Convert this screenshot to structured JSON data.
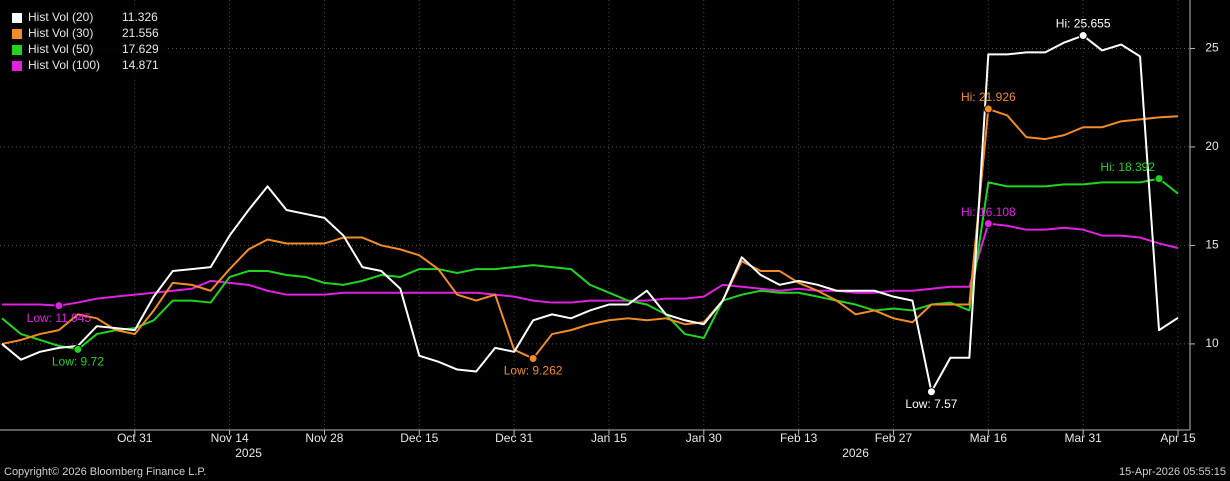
{
  "chart_data": {
    "type": "line",
    "categories": [
      null,
      null,
      null,
      null,
      null,
      null,
      null,
      "Oct 31",
      null,
      null,
      null,
      null,
      "Nov 14",
      null,
      null,
      null,
      null,
      "Nov 28",
      null,
      null,
      null,
      null,
      "Dec 15",
      null,
      null,
      null,
      null,
      "Dec 31",
      null,
      null,
      null,
      null,
      "Jan 15",
      null,
      null,
      null,
      null,
      "Jan 30",
      null,
      null,
      null,
      null,
      "Feb 13",
      null,
      null,
      null,
      null,
      "Feb 27",
      null,
      null,
      null,
      null,
      "Mar 16",
      null,
      null,
      null,
      null,
      "Mar 31",
      null,
      null,
      null,
      null,
      "Apr 15"
    ],
    "years": [
      null,
      null,
      null,
      null,
      null,
      null,
      null,
      null,
      null,
      null,
      null,
      null,
      null,
      "2025",
      null,
      null,
      null,
      null,
      null,
      null,
      null,
      null,
      null,
      null,
      null,
      null,
      null,
      null,
      null,
      null,
      null,
      null,
      null,
      null,
      null,
      null,
      null,
      null,
      null,
      null,
      null,
      null,
      null,
      null,
      null,
      "2026",
      null,
      null,
      null,
      null,
      null,
      null,
      null,
      null,
      null,
      null,
      null,
      null,
      null,
      null,
      null,
      null,
      null
    ],
    "series": [
      {
        "name": "Hist Vol (20)",
        "color": "#ffffff",
        "values": [
          10.0,
          9.2,
          9.6,
          9.8,
          9.9,
          10.9,
          10.8,
          10.7,
          12.4,
          13.7,
          13.8,
          13.9,
          15.5,
          16.8,
          18.0,
          16.8,
          16.6,
          16.4,
          15.5,
          13.9,
          13.7,
          12.8,
          9.4,
          9.1,
          8.7,
          8.6,
          9.8,
          9.6,
          11.2,
          11.5,
          11.3,
          11.7,
          12.0,
          12.0,
          12.7,
          11.5,
          11.2,
          11.0,
          12.2,
          14.4,
          13.5,
          13.0,
          13.2,
          13.0,
          12.7,
          12.7,
          12.7,
          12.4,
          12.2,
          7.57,
          9.3,
          9.3,
          24.7,
          24.7,
          24.8,
          24.8,
          25.3,
          25.655,
          24.9,
          25.2,
          24.6,
          10.7,
          11.326
        ],
        "value_labels": [
          null,
          null,
          null,
          null,
          null,
          null,
          null,
          null,
          null,
          null,
          null,
          null,
          null,
          null,
          null,
          null,
          null,
          null,
          null,
          null,
          null,
          null,
          null,
          null,
          null,
          null,
          null,
          null,
          null,
          null,
          null,
          null,
          null,
          null,
          null,
          null,
          null,
          null,
          null,
          null,
          null,
          null,
          null,
          null,
          null,
          null,
          null,
          null,
          null,
          "Low: 7.57",
          null,
          null,
          null,
          null,
          null,
          null,
          null,
          "Hi: 25.655",
          null,
          null,
          null,
          null,
          null
        ]
      },
      {
        "name": "Hist Vol (30)",
        "color": "#f28c28",
        "values": [
          10.0,
          10.2,
          10.5,
          10.7,
          11.5,
          11.3,
          10.7,
          10.5,
          11.7,
          13.1,
          13.0,
          12.7,
          13.8,
          14.8,
          15.3,
          15.1,
          15.1,
          15.1,
          15.4,
          15.4,
          15.0,
          14.8,
          14.5,
          13.8,
          12.5,
          12.2,
          12.5,
          9.7,
          9.262,
          10.5,
          10.7,
          11.0,
          11.2,
          11.3,
          11.2,
          11.3,
          11.0,
          11.1,
          12.2,
          14.2,
          13.7,
          13.7,
          13.1,
          12.7,
          12.2,
          11.5,
          11.7,
          11.3,
          11.1,
          12.0,
          12.0,
          12.0,
          21.926,
          21.6,
          20.5,
          20.4,
          20.6,
          21.0,
          21.0,
          21.3,
          21.4,
          21.5,
          21.556
        ],
        "value_labels": [
          null,
          null,
          null,
          null,
          null,
          null,
          null,
          null,
          null,
          null,
          null,
          null,
          null,
          null,
          null,
          null,
          null,
          null,
          null,
          null,
          null,
          null,
          null,
          null,
          null,
          null,
          null,
          null,
          "Low: 9.262",
          null,
          null,
          null,
          null,
          null,
          null,
          null,
          null,
          null,
          null,
          null,
          null,
          null,
          null,
          null,
          null,
          null,
          null,
          null,
          null,
          null,
          null,
          null,
          "Hi: 21.926",
          null,
          null,
          null,
          null,
          null,
          null,
          null,
          null,
          null,
          null
        ]
      },
      {
        "name": "Hist Vol (50)",
        "color": "#22d322",
        "values": [
          11.3,
          10.5,
          10.2,
          9.9,
          9.72,
          10.5,
          10.7,
          10.8,
          11.2,
          12.2,
          12.2,
          12.1,
          13.4,
          13.7,
          13.7,
          13.5,
          13.4,
          13.1,
          13.0,
          13.2,
          13.5,
          13.4,
          13.8,
          13.8,
          13.6,
          13.8,
          13.8,
          13.9,
          14.0,
          13.9,
          13.8,
          13.0,
          12.6,
          12.2,
          12.0,
          11.5,
          10.5,
          10.3,
          12.2,
          12.5,
          12.7,
          12.6,
          12.6,
          12.4,
          12.2,
          12.0,
          11.7,
          11.8,
          11.7,
          12.0,
          12.1,
          11.7,
          18.2,
          18.0,
          18.0,
          18.0,
          18.1,
          18.1,
          18.2,
          18.2,
          18.2,
          18.392,
          17.629
        ],
        "value_labels": [
          null,
          null,
          null,
          null,
          "Low: 9.72",
          null,
          null,
          null,
          null,
          null,
          null,
          null,
          null,
          null,
          null,
          null,
          null,
          null,
          null,
          null,
          null,
          null,
          null,
          null,
          null,
          null,
          null,
          null,
          null,
          null,
          null,
          null,
          null,
          null,
          null,
          null,
          null,
          null,
          null,
          null,
          null,
          null,
          null,
          null,
          null,
          null,
          null,
          null,
          null,
          null,
          null,
          null,
          null,
          null,
          null,
          null,
          null,
          null,
          null,
          null,
          null,
          "Hi: 18.392",
          null
        ]
      },
      {
        "name": "Hist Vol (100)",
        "color": "#e022e0",
        "values": [
          12.0,
          12.0,
          12.0,
          11.945,
          12.1,
          12.3,
          12.4,
          12.5,
          12.6,
          12.7,
          12.8,
          13.2,
          13.1,
          13.0,
          12.7,
          12.5,
          12.5,
          12.5,
          12.6,
          12.6,
          12.6,
          12.6,
          12.6,
          12.6,
          12.6,
          12.6,
          12.5,
          12.4,
          12.2,
          12.1,
          12.1,
          12.2,
          12.2,
          12.2,
          12.2,
          12.3,
          12.3,
          12.4,
          13.0,
          12.9,
          12.8,
          12.7,
          12.8,
          12.7,
          12.7,
          12.6,
          12.6,
          12.7,
          12.7,
          12.8,
          12.9,
          12.9,
          16.108,
          16.0,
          15.8,
          15.8,
          15.9,
          15.8,
          15.5,
          15.5,
          15.4,
          15.1,
          14.871
        ],
        "value_labels": [
          null,
          null,
          null,
          "Low: 11.945",
          null,
          null,
          null,
          null,
          null,
          null,
          null,
          null,
          null,
          null,
          null,
          null,
          null,
          null,
          null,
          null,
          null,
          null,
          null,
          null,
          null,
          null,
          null,
          null,
          null,
          null,
          null,
          null,
          null,
          null,
          null,
          null,
          null,
          null,
          null,
          null,
          null,
          null,
          null,
          null,
          null,
          null,
          null,
          null,
          null,
          null,
          null,
          null,
          "Hi: 16.108",
          null,
          null,
          null,
          null,
          null,
          null,
          null,
          null,
          null,
          null
        ]
      }
    ],
    "ylim": [
      5.63,
      27.46
    ],
    "yticks": [
      10,
      15,
      20,
      25
    ],
    "grid": true,
    "legend": "top-left"
  },
  "footer": {
    "copyright": "Copyright© 2026 Bloomberg Finance L.P.",
    "timestamp": "15-Apr-2026 05:55:15"
  }
}
